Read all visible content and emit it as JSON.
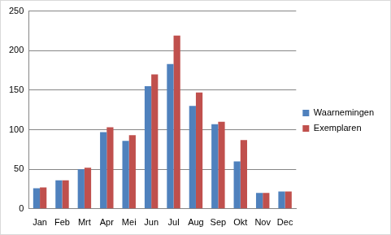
{
  "chart_data": {
    "type": "bar",
    "categories": [
      "Jan",
      "Feb",
      "Mrt",
      "Apr",
      "Mei",
      "Jun",
      "Jul",
      "Aug",
      "Sep",
      "Okt",
      "Nov",
      "Dec"
    ],
    "series": [
      {
        "name": "Waarnemingen",
        "color": "#4f81bd",
        "values": [
          26,
          36,
          50,
          97,
          86,
          155,
          183,
          130,
          107,
          60,
          20,
          22
        ]
      },
      {
        "name": "Exemplaren",
        "color": "#c0504d",
        "values": [
          27,
          36,
          52,
          103,
          93,
          170,
          219,
          147,
          110,
          87,
          20,
          22
        ]
      }
    ],
    "ylim": [
      0,
      250
    ],
    "yticks": [
      0,
      50,
      100,
      150,
      200,
      250
    ],
    "grid": true,
    "legend": "right"
  }
}
